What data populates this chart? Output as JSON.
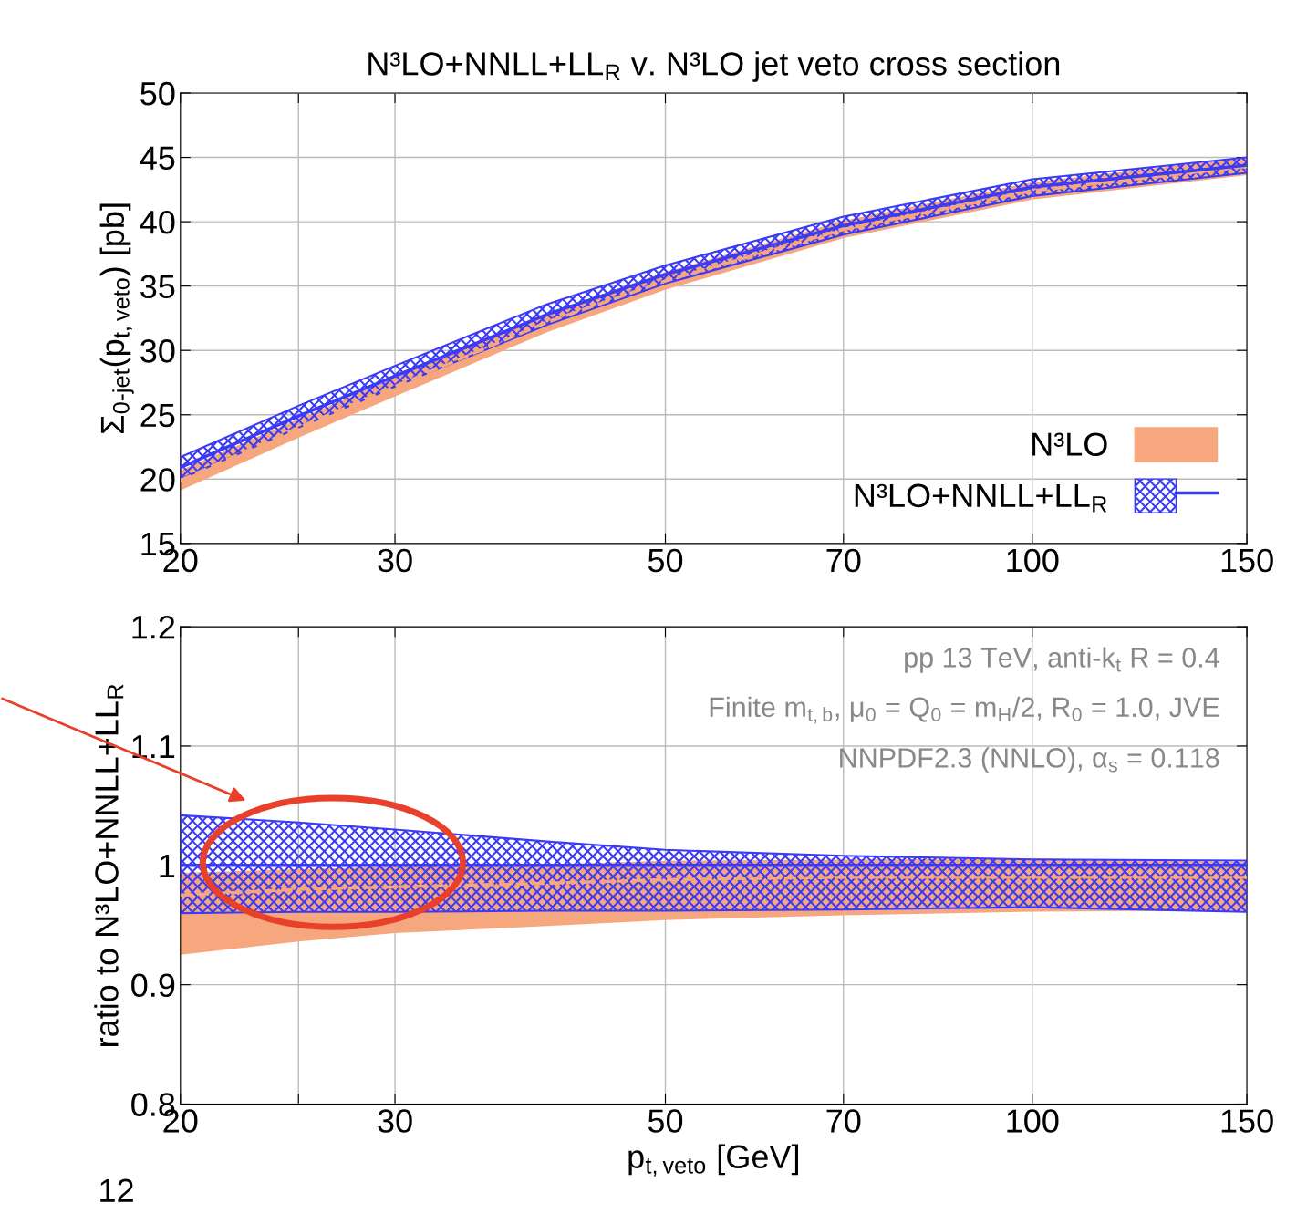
{
  "chart_data": [
    {
      "type": "line",
      "title": "N³LO+NNLL+LL$_{R}$ v. N³LO jet veto cross section",
      "ylabel": "Σ$_{0-jet}$(p$_{t,veto}$) [pb]",
      "x": [
        20,
        25,
        30,
        40,
        50,
        70,
        100,
        150
      ],
      "log": "x",
      "xlim": [
        20,
        150
      ],
      "xticks": [
        20,
        {
          "value": 25,
          "label": null
        },
        30,
        50,
        70,
        100,
        150
      ],
      "ylim": [
        15,
        50
      ],
      "yticks": [
        15,
        20,
        25,
        30,
        35,
        40,
        45,
        50
      ],
      "grid": true,
      "legend": "bottom right",
      "series": [
        {
          "name": "N³LO",
          "color": "#f7a77e",
          "line_style": "dashed",
          "values": [
            19.9,
            24.0,
            27.2,
            32.2,
            35.4,
            39.4,
            42.4,
            44.3
          ],
          "lower": [
            19.2,
            23.3,
            26.5,
            31.5,
            34.8,
            38.8,
            41.8,
            43.7
          ],
          "upper": [
            20.6,
            24.6,
            27.8,
            32.8,
            36.0,
            40.0,
            43.0,
            44.9
          ]
        },
        {
          "name": "N³LO+NNLL+LL$_{R}$",
          "color": "#3b3bf5",
          "line_style": "solid",
          "values": [
            20.9,
            24.9,
            28.0,
            32.8,
            35.9,
            39.7,
            42.7,
            44.4
          ],
          "lower": [
            20.0,
            24.0,
            27.2,
            32.0,
            35.2,
            39.0,
            42.0,
            43.8
          ],
          "upper": [
            21.7,
            25.7,
            28.8,
            33.6,
            36.6,
            40.4,
            43.3,
            45.0
          ]
        }
      ]
    },
    {
      "type": "line",
      "xlabel": "p$_{t,veto}$ [GeV]",
      "ylabel": "ratio to N³LO+NNLL+LL$_{R}$",
      "x": [
        20,
        25,
        30,
        40,
        50,
        70,
        100,
        150
      ],
      "log": "x",
      "xlim": [
        20,
        150
      ],
      "xticks": [
        20,
        {
          "value": 25,
          "label": null
        },
        30,
        50,
        70,
        100,
        150
      ],
      "ylim": [
        0.8,
        1.2
      ],
      "yticks": [
        0.8,
        0.9,
        1,
        1.1,
        1.2
      ],
      "grid": true,
      "annotations": [
        "pp 13 TeV, anti-k$_{t}$ R = 0.4",
        "Finite m$_{t,b}$, μ$_{0}$ = Q$_{0}$ = m$_{H}$/2, R$_{0}$ = 1.0, JVE",
        "NNPDF2.3 (NNLO), α$_{s}$ = 0.118",
        "12"
      ],
      "series": [
        {
          "color": "#f7a77e",
          "line_style": "dashed",
          "values": [
            0.975,
            0.98,
            0.982,
            0.985,
            0.988,
            0.99,
            0.99,
            0.99
          ],
          "lower": [
            0.926,
            0.937,
            0.944,
            0.95,
            0.955,
            0.959,
            0.962,
            0.963
          ],
          "upper": [
            0.993,
            0.996,
            0.998,
            1.0,
            1.003,
            1.004,
            1.005,
            1.002
          ]
        },
        {
          "color": "#3b3bf5",
          "line_style": "solid",
          "values": [
            1,
            1,
            1,
            1,
            1,
            1,
            1,
            1
          ],
          "lower": [
            0.96,
            0.961,
            0.961,
            0.962,
            0.962,
            0.963,
            0.965,
            0.961
          ],
          "upper": [
            1.042,
            1.036,
            1.03,
            1.02,
            1.013,
            1.008,
            1.005,
            1.004
          ]
        }
      ]
    }
  ]
}
